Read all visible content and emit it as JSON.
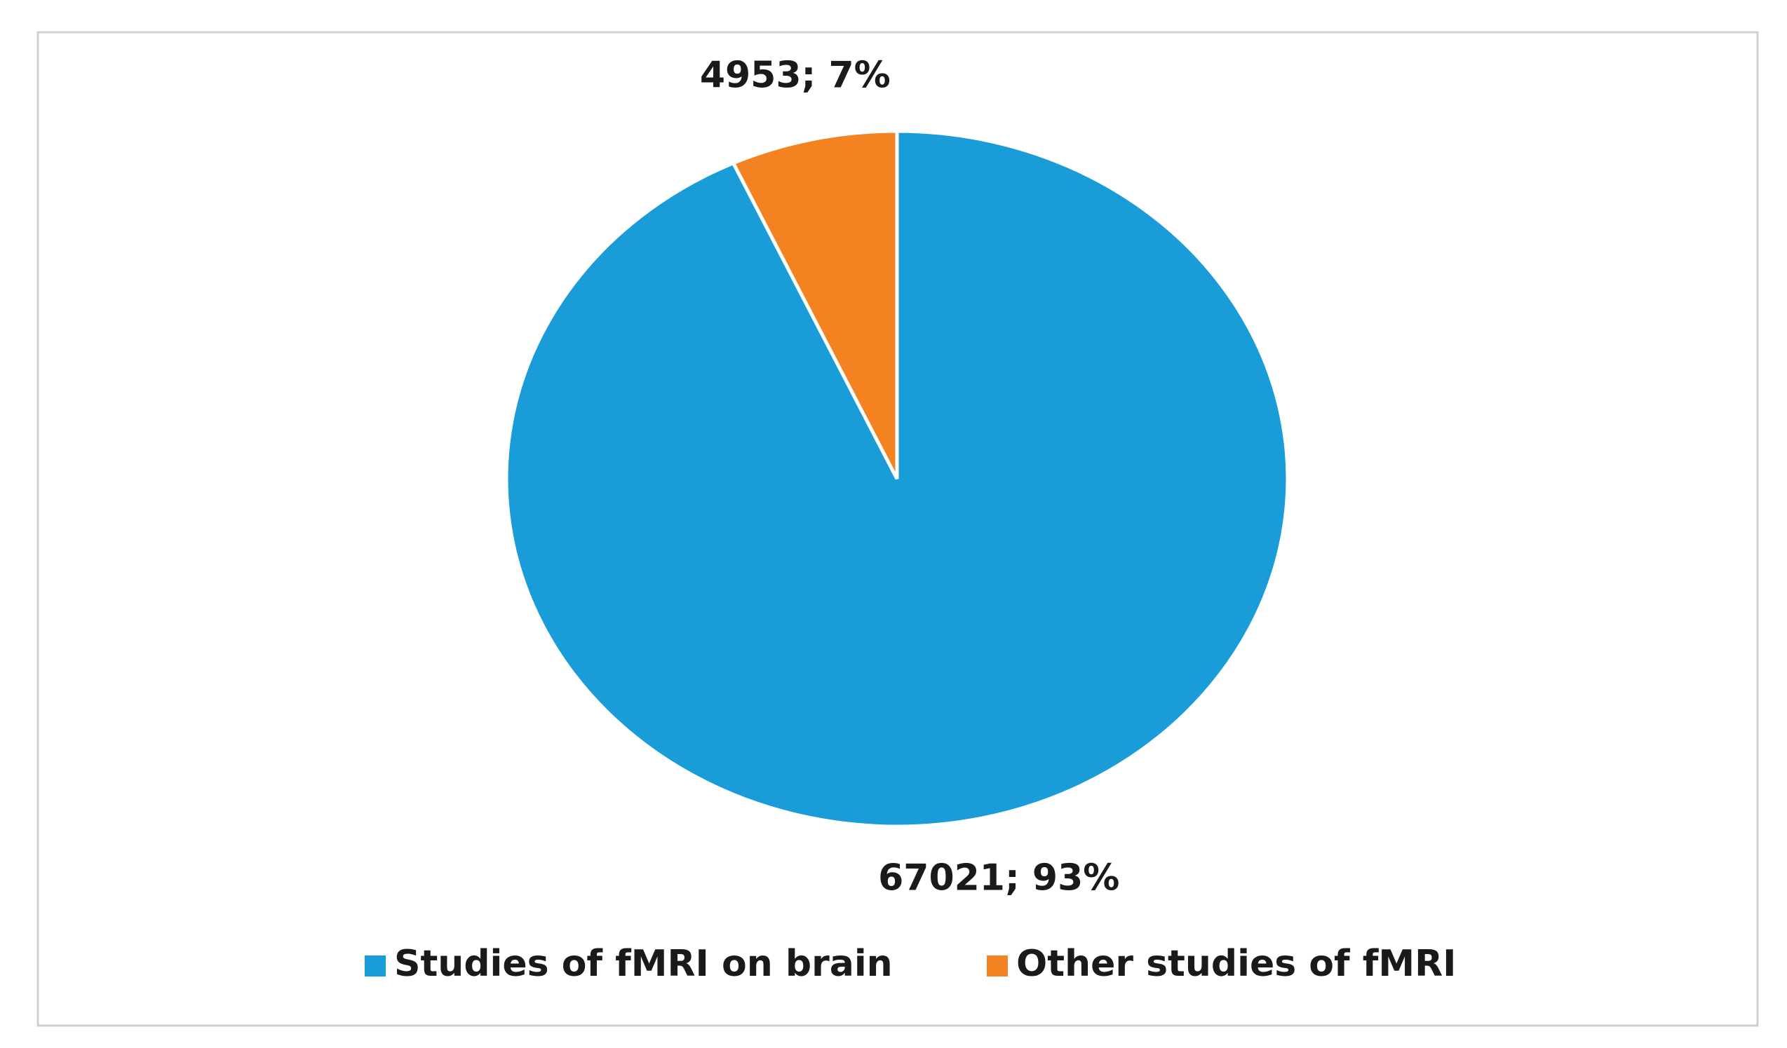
{
  "chart_data": {
    "type": "pie",
    "categories": [
      "Studies of fMRI on brain",
      "Other studies of fMRI"
    ],
    "values": [
      67021,
      4953
    ],
    "value_labels": [
      "67021; 93%",
      "4953; 7%"
    ],
    "colors": [
      "#1a9cd8",
      "#f58220"
    ],
    "legend": "bottom"
  }
}
